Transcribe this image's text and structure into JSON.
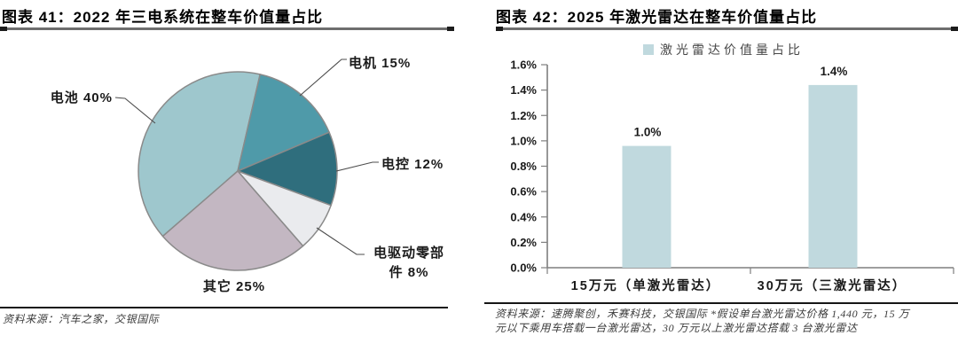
{
  "page": {
    "background": "#ffffff"
  },
  "figure41": {
    "title": "图表 41：2022 年三电系统在整车价值量占比",
    "source": "资料来源：汽车之家，交银国际"
  },
  "figure42": {
    "title": "图表 42：2025 年激光雷达在整车价值量占比",
    "source": "资料来源：速腾聚创，禾赛科技，交银国际 *假设单台激光雷达价格 1,440 元，15 万元以下乘用车搭载一台激光雷达，30 万元以上激光雷达搭载 3 台激光雷达"
  },
  "chart_data": [
    {
      "type": "pie",
      "title": "2022 年三电系统在整车价值量占比",
      "start_angle_deg": 229,
      "stroke": "#8a8a8a",
      "grid": false,
      "legend_position": "none",
      "slices": [
        {
          "label": "电池",
          "value": 40,
          "display": "电池 40%",
          "color": "#9ec7cd"
        },
        {
          "label": "电机",
          "value": 15,
          "display": "电机 15%",
          "color": "#4f9aa9"
        },
        {
          "label": "电控",
          "value": 12,
          "display": "电控 12%",
          "color": "#2f6e7d"
        },
        {
          "label": "电驱动零部件",
          "value": 8,
          "display": [
            "电驱动零部",
            "件 8%"
          ],
          "color": "#eaebee"
        },
        {
          "label": "其它",
          "value": 25,
          "display": "其它 25%",
          "color": "#c3b7c2"
        }
      ]
    },
    {
      "type": "bar",
      "title": "2025 年激光雷达在整车价值量占比",
      "legend": "激光雷达价值量占比",
      "legend_position": "top",
      "categories": [
        "15万元（单激光雷达）",
        "30万元（三激光雷达）"
      ],
      "values": [
        0.96,
        1.44
      ],
      "data_labels": [
        "1.0%",
        "1.4%"
      ],
      "ylabel_ticks": [
        "0.0%",
        "0.2%",
        "0.4%",
        "0.6%",
        "0.8%",
        "1.0%",
        "1.2%",
        "1.4%",
        "1.6%"
      ],
      "ylim": [
        0,
        1.6
      ],
      "grid": false,
      "bar_color": "#c0d9de",
      "axis_color": "#7f7f7f"
    }
  ]
}
